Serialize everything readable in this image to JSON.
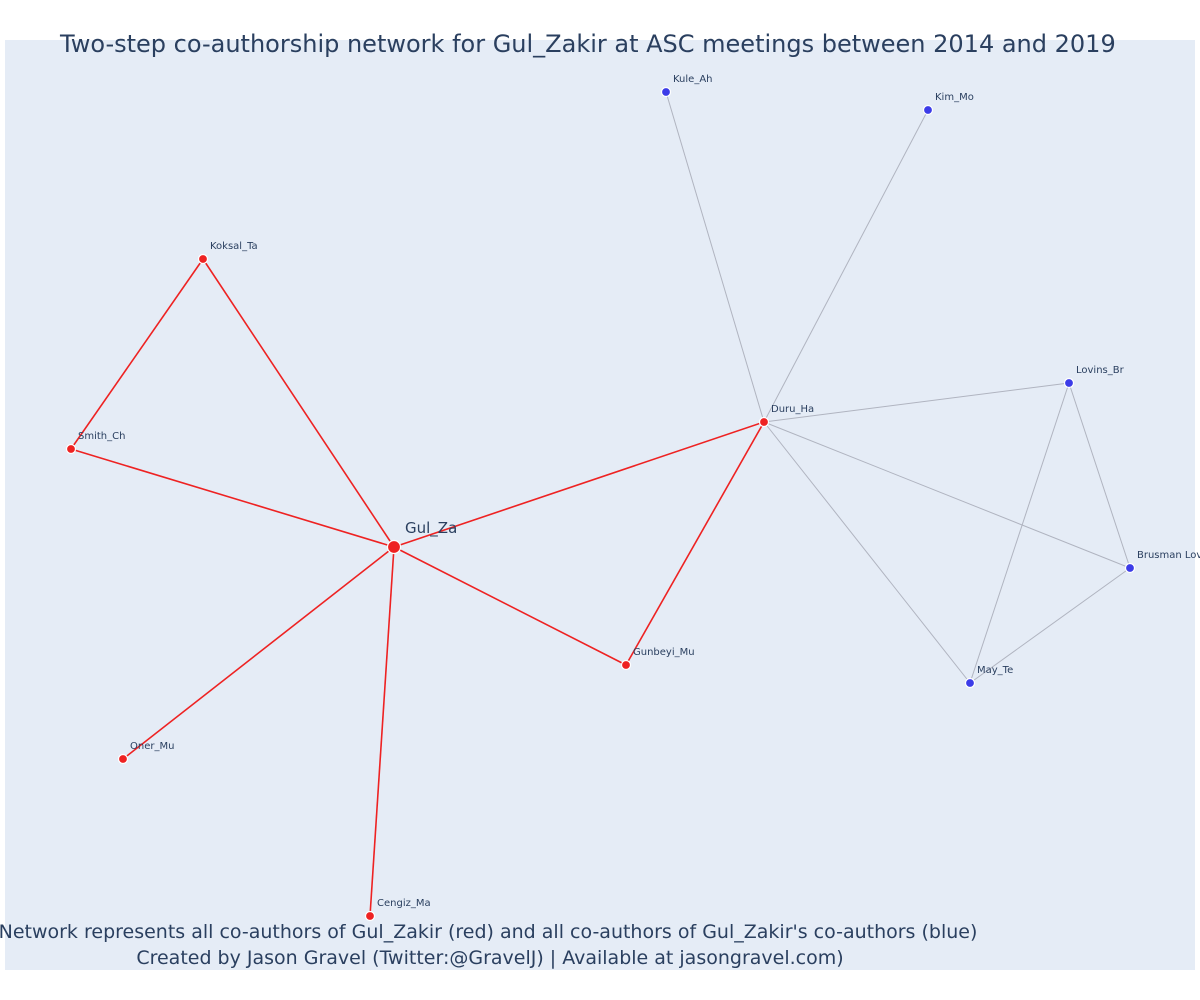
{
  "title": "Two-step co-authorship network for Gul_Zakir at ASC meetings between 2014 and 2019",
  "caption_line1": "Network represents all co-authors of Gul_Zakir (red) and all co-authors of Gul_Zakir's co-authors (blue)",
  "caption_line2": "Created by Jason Gravel (Twitter:@GravelJ) | Available at jasongravel.com)",
  "colors": {
    "plot_background": "#e5ecf6",
    "first_step": "#ee2222",
    "second_step": "#3c3ce8",
    "first_step_edge": "#ee2222",
    "second_step_edge": "#b0b4c0",
    "text": "#2a3f5f"
  },
  "network": {
    "center": "Gul_Za",
    "nodes": [
      {
        "id": "Gul_Za",
        "group": "center"
      },
      {
        "id": "Koksal_Ta",
        "group": "first_step"
      },
      {
        "id": "Smith_Ch",
        "group": "first_step"
      },
      {
        "id": "Oner_Mu",
        "group": "first_step"
      },
      {
        "id": "Cengiz_Ma",
        "group": "first_step"
      },
      {
        "id": "Gunbeyi_Mu",
        "group": "first_step"
      },
      {
        "id": "Duru_Ha",
        "group": "first_step"
      },
      {
        "id": "Kule_Ah",
        "group": "second_step"
      },
      {
        "id": "Kim_Mo",
        "group": "second_step"
      },
      {
        "id": "Lovins_Br",
        "group": "second_step"
      },
      {
        "id": "Brusman Lov",
        "group": "second_step"
      },
      {
        "id": "May_Te",
        "group": "second_step"
      }
    ],
    "edges": [
      {
        "source": "Gul_Za",
        "target": "Koksal_Ta",
        "group": "first_step"
      },
      {
        "source": "Gul_Za",
        "target": "Smith_Ch",
        "group": "first_step"
      },
      {
        "source": "Gul_Za",
        "target": "Oner_Mu",
        "group": "first_step"
      },
      {
        "source": "Gul_Za",
        "target": "Cengiz_Ma",
        "group": "first_step"
      },
      {
        "source": "Gul_Za",
        "target": "Gunbeyi_Mu",
        "group": "first_step"
      },
      {
        "source": "Gul_Za",
        "target": "Duru_Ha",
        "group": "first_step"
      },
      {
        "source": "Koksal_Ta",
        "target": "Smith_Ch",
        "group": "first_step"
      },
      {
        "source": "Duru_Ha",
        "target": "Gunbeyi_Mu",
        "group": "first_step"
      },
      {
        "source": "Duru_Ha",
        "target": "Kule_Ah",
        "group": "second_step"
      },
      {
        "source": "Duru_Ha",
        "target": "Kim_Mo",
        "group": "second_step"
      },
      {
        "source": "Duru_Ha",
        "target": "Lovins_Br",
        "group": "second_step"
      },
      {
        "source": "Duru_Ha",
        "target": "Brusman Lov",
        "group": "second_step"
      },
      {
        "source": "Duru_Ha",
        "target": "May_Te",
        "group": "second_step"
      },
      {
        "source": "Lovins_Br",
        "target": "Brusman Lov",
        "group": "second_step"
      },
      {
        "source": "Lovins_Br",
        "target": "May_Te",
        "group": "second_step"
      },
      {
        "source": "Brusman Lov",
        "target": "May_Te",
        "group": "second_step"
      }
    ]
  }
}
